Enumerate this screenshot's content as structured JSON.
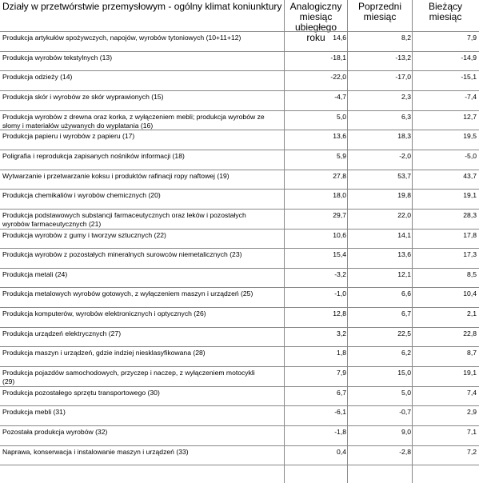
{
  "table": {
    "headers": {
      "category": "Działy w przetwórstwie przemysłowym - ogólny klimat koniunktury",
      "same_month_last_year": "Analogiczny miesiąc ubiegłego roku",
      "previous_month": "Poprzedni miesiąc",
      "current_month": "Bieżący miesiąc"
    },
    "rows": [
      {
        "name": "Produkcja artykułów spożywczych, napojów, wyrobów tytoniowych (10+11+12)",
        "same_month_last_year": "14,6",
        "previous_month": "8,2",
        "current_month": "7,9"
      },
      {
        "name": "Produkcja wyrobów tekstylnych (13)",
        "same_month_last_year": "-18,1",
        "previous_month": "-13,2",
        "current_month": "-14,9"
      },
      {
        "name": "Produkcja odzieży (14)",
        "same_month_last_year": "-22,0",
        "previous_month": "-17,0",
        "current_month": "-15,1"
      },
      {
        "name": "Produkcja skór i wyrobów ze skór wyprawionych (15)",
        "same_month_last_year": "-4,7",
        "previous_month": "2,3",
        "current_month": "-7,4"
      },
      {
        "name": "Produkcja wyrobów z drewna oraz korka, z wyłączeniem mebli; produkcja wyrobów ze\nsłomy i materiałów używanych do wyplatania (16)",
        "same_month_last_year": "5,0",
        "previous_month": "6,3",
        "current_month": "12,7"
      },
      {
        "name": "Produkcja papieru i wyrobów z papieru (17)",
        "same_month_last_year": "13,6",
        "previous_month": "18,3",
        "current_month": "19,5"
      },
      {
        "name": "Poligrafia i reprodukcja zapisanych nośników informacji (18)",
        "same_month_last_year": "5,9",
        "previous_month": "-2,0",
        "current_month": "-5,0"
      },
      {
        "name": "Wytwarzanie i przetwarzanie koksu i produktów rafinacji ropy naftowej (19)",
        "same_month_last_year": "27,8",
        "previous_month": "53,7",
        "current_month": "43,7"
      },
      {
        "name": "Produkcja chemikaliów i wyrobów chemicznych (20)",
        "same_month_last_year": "18,0",
        "previous_month": "19,8",
        "current_month": "19,1"
      },
      {
        "name": "Produkcja podstawowych substancji farmaceutycznych oraz leków i pozostałych\nwyrobów farmaceutycznych (21)",
        "same_month_last_year": "29,7",
        "previous_month": "22,0",
        "current_month": "28,3"
      },
      {
        "name": "Produkcja wyrobów z gumy i tworzyw sztucznych (22)",
        "same_month_last_year": "10,6",
        "previous_month": "14,1",
        "current_month": "17,8"
      },
      {
        "name": "Produkcja wyrobów z pozostałych mineralnych surowców niemetalicznych (23)",
        "same_month_last_year": "15,4",
        "previous_month": "13,6",
        "current_month": "17,3"
      },
      {
        "name": "Produkcja metali (24)",
        "same_month_last_year": "-3,2",
        "previous_month": "12,1",
        "current_month": "8,5"
      },
      {
        "name": "Produkcja metalowych wyrobów gotowych, z wyłączeniem maszyn i urządzeń (25)",
        "same_month_last_year": "-1,0",
        "previous_month": "6,6",
        "current_month": "10,4"
      },
      {
        "name": "Produkcja komputerów, wyrobów elektronicznych i optycznych (26)",
        "same_month_last_year": "12,8",
        "previous_month": "6,7",
        "current_month": "2,1"
      },
      {
        "name": "Produkcja urządzeń elektrycznych (27)",
        "same_month_last_year": "3,2",
        "previous_month": "22,5",
        "current_month": "22,8"
      },
      {
        "name": "Produkcja maszyn i urządzeń, gdzie indziej niesklasyfikowana (28)",
        "same_month_last_year": "1,8",
        "previous_month": "6,2",
        "current_month": "8,7"
      },
      {
        "name": "Produkcja pojazdów samochodowych, przyczep i naczep, z wyłączeniem motocykli\n(29)",
        "same_month_last_year": "7,9",
        "previous_month": "15,0",
        "current_month": "19,1"
      },
      {
        "name": "Produkcja pozostałego sprzętu transportowego (30)",
        "same_month_last_year": "6,7",
        "previous_month": "5,0",
        "current_month": "7,4"
      },
      {
        "name": "Produkcja mebli (31)",
        "same_month_last_year": "-6,1",
        "previous_month": "-0,7",
        "current_month": "2,9"
      },
      {
        "name": "Pozostała produkcja wyrobów (32)",
        "same_month_last_year": "-1,8",
        "previous_month": "9,0",
        "current_month": "7,1"
      },
      {
        "name": "Naprawa, konserwacja i instalowanie maszyn i urządzeń (33)",
        "same_month_last_year": "0,4",
        "previous_month": "-2,8",
        "current_month": "7,2"
      }
    ]
  },
  "chart_data": {
    "type": "table",
    "columns": [
      "Działy w przetwórstwie przemysłowym - ogólny klimat koniunktury",
      "Analogiczny miesiąc ubiegłego roku",
      "Poprzedni miesiąc",
      "Bieżący miesiąc"
    ],
    "categories": [
      "Produkcja artykułów spożywczych, napojów, wyrobów tytoniowych (10+11+12)",
      "Produkcja wyrobów tekstylnych (13)",
      "Produkcja odzieży (14)",
      "Produkcja skór i wyrobów ze skór wyprawionych (15)",
      "Produkcja wyrobów z drewna oraz korka, z wyłączeniem mebli; produkcja wyrobów ze słomy i materiałów używanych do wyplatania (16)",
      "Produkcja papieru i wyrobów z papieru (17)",
      "Poligrafia i reprodukcja zapisanych nośników informacji (18)",
      "Wytwarzanie i przetwarzanie koksu i produktów rafinacji ropy naftowej (19)",
      "Produkcja chemikaliów i wyrobów chemicznych (20)",
      "Produkcja podstawowych substancji farmaceutycznych oraz leków i pozostałych wyrobów farmaceutycznych (21)",
      "Produkcja wyrobów z gumy i tworzyw sztucznych (22)",
      "Produkcja wyrobów z pozostałych mineralnych surowców niemetalicznych (23)",
      "Produkcja metali (24)",
      "Produkcja metalowych wyrobów gotowych, z wyłączeniem maszyn i urządzeń (25)",
      "Produkcja komputerów, wyrobów elektronicznych i optycznych (26)",
      "Produkcja urządzeń elektrycznych (27)",
      "Produkcja maszyn i urządzeń, gdzie indziej niesklasyfikowana (28)",
      "Produkcja pojazdów samochodowych, przyczep i naczep, z wyłączeniem motocykli (29)",
      "Produkcja pozostałego sprzętu transportowego (30)",
      "Produkcja mebli (31)",
      "Pozostała produkcja wyrobów (32)",
      "Naprawa, konserwacja i instalowanie maszyn i urządzeń (33)"
    ],
    "series": [
      {
        "name": "Analogiczny miesiąc ubiegłego roku",
        "values": [
          14.6,
          -18.1,
          -22.0,
          -4.7,
          5.0,
          13.6,
          5.9,
          27.8,
          18.0,
          29.7,
          10.6,
          15.4,
          -3.2,
          -1.0,
          12.8,
          3.2,
          1.8,
          7.9,
          6.7,
          -6.1,
          -1.8,
          0.4
        ]
      },
      {
        "name": "Poprzedni miesiąc",
        "values": [
          8.2,
          -13.2,
          -17.0,
          2.3,
          6.3,
          18.3,
          -2.0,
          53.7,
          19.8,
          22.0,
          14.1,
          13.6,
          12.1,
          6.6,
          6.7,
          22.5,
          6.2,
          15.0,
          5.0,
          -0.7,
          9.0,
          -2.8
        ]
      },
      {
        "name": "Bieżący miesiąc",
        "values": [
          7.9,
          -14.9,
          -15.1,
          -7.4,
          12.7,
          19.5,
          -5.0,
          43.7,
          19.1,
          28.3,
          17.8,
          17.3,
          8.5,
          10.4,
          2.1,
          22.8,
          8.7,
          19.1,
          7.4,
          2.9,
          7.1,
          7.2
        ]
      }
    ]
  }
}
